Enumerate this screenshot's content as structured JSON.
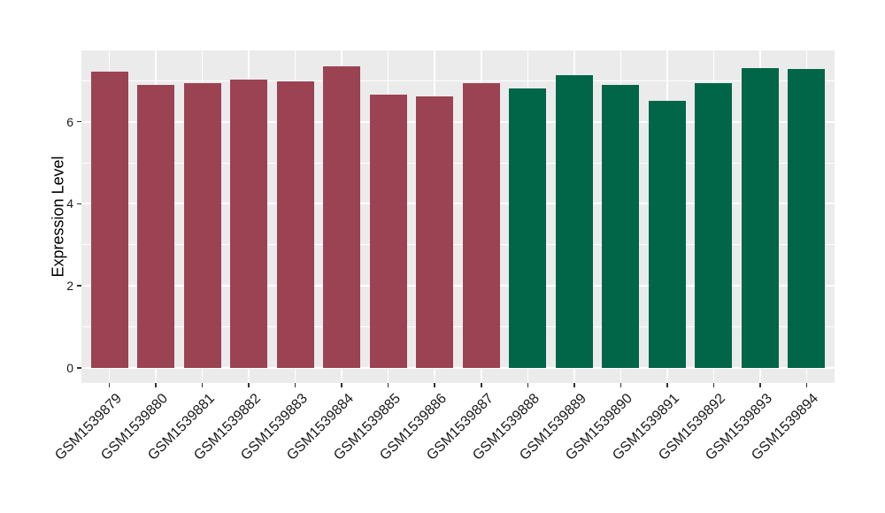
{
  "figure": {
    "background_color": "#FFFFFF"
  },
  "chart_data": {
    "type": "bar",
    "title": "",
    "xlabel": "",
    "ylabel": "Expression Level",
    "categories": [
      "GSM1539879",
      "GSM1539880",
      "GSM1539881",
      "GSM1539882",
      "GSM1539883",
      "GSM1539884",
      "GSM1539885",
      "GSM1539886",
      "GSM1539887",
      "GSM1539888",
      "GSM1539889",
      "GSM1539890",
      "GSM1539891",
      "GSM1539892",
      "GSM1539893",
      "GSM1539894"
    ],
    "values": [
      7.22,
      6.9,
      6.93,
      7.03,
      6.99,
      7.34,
      6.65,
      6.62,
      6.95,
      6.82,
      7.14,
      6.9,
      6.5,
      6.93,
      7.3,
      7.28
    ],
    "groups": [
      "group1",
      "group1",
      "group1",
      "group1",
      "group1",
      "group1",
      "group1",
      "group1",
      "group1",
      "group2",
      "group2",
      "group2",
      "group2",
      "group2",
      "group2",
      "group2"
    ],
    "group_colors": {
      "group1": "#9B4353",
      "group2": "#016648"
    },
    "yticks": [
      0,
      2,
      4,
      6
    ],
    "ytick_labels": [
      "0",
      "2",
      "4",
      "6"
    ],
    "yminor": [
      1,
      3,
      5,
      7
    ],
    "ylim": [
      0,
      7.72
    ],
    "grid": "on",
    "legend": "none",
    "panel_background": "#EBEBEB",
    "grid_color": "#FFFFFF",
    "axis_text_color": "#1A1A1A",
    "bar_width_fraction": 0.8
  }
}
